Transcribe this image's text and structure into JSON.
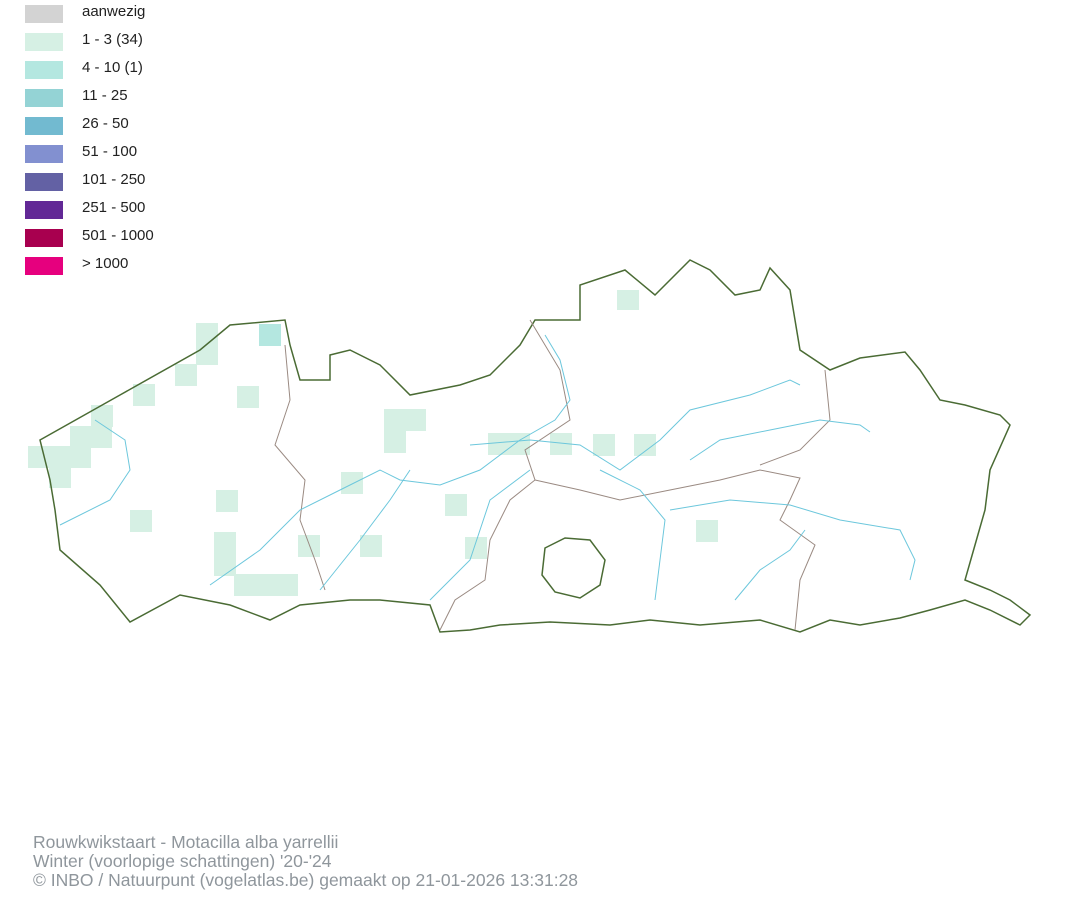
{
  "legend": [
    {
      "label": "aanwezig",
      "color": "#d3d3d3"
    },
    {
      "label": "1 - 3 (34)",
      "color": "#d6f0e4"
    },
    {
      "label": "4 - 10 (1)",
      "color": "#b4e7e0"
    },
    {
      "label": "11 - 25",
      "color": "#94d3d5"
    },
    {
      "label": "26 - 50",
      "color": "#72bad0"
    },
    {
      "label": "51 - 100",
      "color": "#8290d0"
    },
    {
      "label": "101 - 250",
      "color": "#6361a4"
    },
    {
      "label": "251 - 500",
      "color": "#622896"
    },
    {
      "label": "501 - 1000",
      "color": "#a8004f"
    },
    {
      "label": "> 1000",
      "color": "#e6007e"
    }
  ],
  "map": {
    "border_color": "#4a6b34",
    "province_border_color": "#9a8a82",
    "river_color": "#6cc7dc"
  },
  "footer": {
    "line1": "Rouwkwikstaart - Motacilla alba yarrellii",
    "line2": "Winter (voorlopige schattingen) '20-'24",
    "line3": "© INBO / Natuurpunt (vogelatlas.be) gemaakt op 21-01-2026 13:31:28"
  }
}
